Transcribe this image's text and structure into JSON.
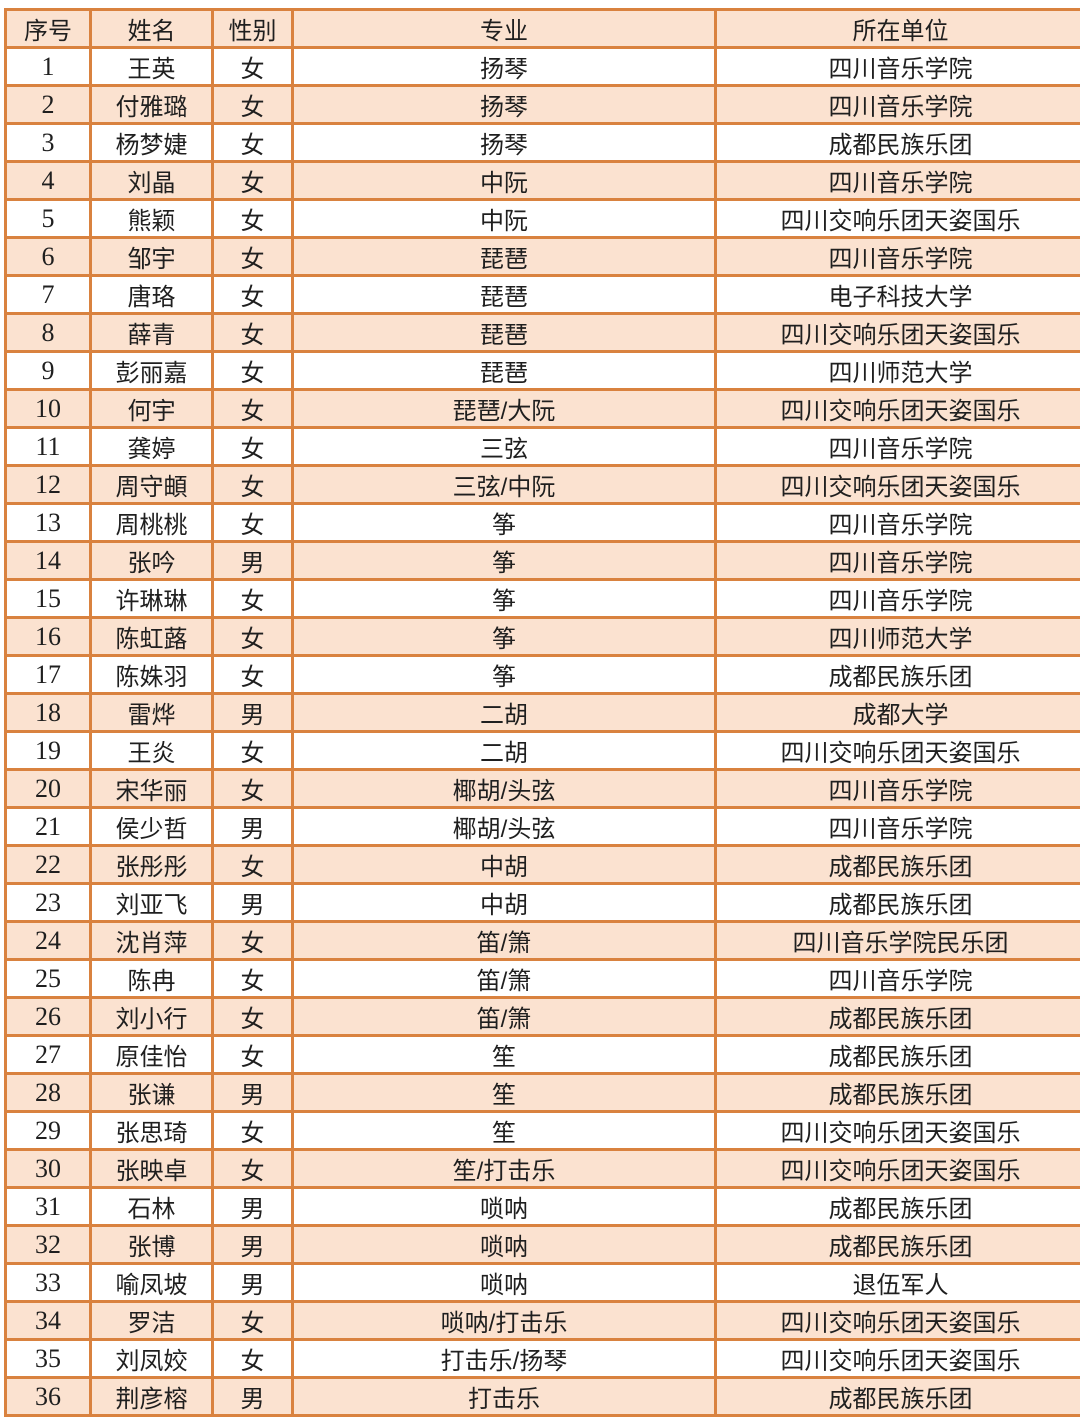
{
  "colors": {
    "border": "#d9823f",
    "header_bg": "#fbe2d0",
    "alt_row_bg": "#fbe2d0",
    "row_bg": "#ffffff",
    "text": "#1f1f1f"
  },
  "table": {
    "columns": [
      "序号",
      "姓名",
      "性别",
      "专业",
      "所在单位"
    ],
    "rows": [
      [
        "1",
        "王英",
        "女",
        "扬琴",
        "四川音乐学院"
      ],
      [
        "2",
        "付雅璐",
        "女",
        "扬琴",
        "四川音乐学院"
      ],
      [
        "3",
        "杨梦婕",
        "女",
        "扬琴",
        "成都民族乐团"
      ],
      [
        "4",
        "刘晶",
        "女",
        "中阮",
        "四川音乐学院"
      ],
      [
        "5",
        "熊颖",
        "女",
        "中阮",
        "四川交响乐团天姿国乐"
      ],
      [
        "6",
        "邹宇",
        "女",
        "琵琶",
        "四川音乐学院"
      ],
      [
        "7",
        "唐珞",
        "女",
        "琵琶",
        "电子科技大学"
      ],
      [
        "8",
        "薛青",
        "女",
        "琵琶",
        "四川交响乐团天姿国乐"
      ],
      [
        "9",
        "彭丽嘉",
        "女",
        "琵琶",
        "四川师范大学"
      ],
      [
        "10",
        "何宇",
        "女",
        "琵琶/大阮",
        "四川交响乐团天姿国乐"
      ],
      [
        "11",
        "龚婷",
        "女",
        "三弦",
        "四川音乐学院"
      ],
      [
        "12",
        "周守頔",
        "女",
        "三弦/中阮",
        "四川交响乐团天姿国乐"
      ],
      [
        "13",
        "周桃桃",
        "女",
        "筝",
        "四川音乐学院"
      ],
      [
        "14",
        "张吟",
        "男",
        "筝",
        "四川音乐学院"
      ],
      [
        "15",
        "许琳琳",
        "女",
        "筝",
        "四川音乐学院"
      ],
      [
        "16",
        "陈虹蕗",
        "女",
        "筝",
        "四川师范大学"
      ],
      [
        "17",
        "陈姝羽",
        "女",
        "筝",
        "成都民族乐团"
      ],
      [
        "18",
        "雷烨",
        "男",
        "二胡",
        "成都大学"
      ],
      [
        "19",
        "王炎",
        "女",
        "二胡",
        "四川交响乐团天姿国乐"
      ],
      [
        "20",
        "宋华丽",
        "女",
        "椰胡/头弦",
        "四川音乐学院"
      ],
      [
        "21",
        "侯少哲",
        "男",
        "椰胡/头弦",
        "四川音乐学院"
      ],
      [
        "22",
        "张彤彤",
        "女",
        "中胡",
        "成都民族乐团"
      ],
      [
        "23",
        "刘亚飞",
        "男",
        "中胡",
        "成都民族乐团"
      ],
      [
        "24",
        "沈肖萍",
        "女",
        "笛/箫",
        "四川音乐学院民乐团"
      ],
      [
        "25",
        "陈冉",
        "女",
        "笛/箫",
        "四川音乐学院"
      ],
      [
        "26",
        "刘小行",
        "女",
        "笛/箫",
        "成都民族乐团"
      ],
      [
        "27",
        "原佳怡",
        "女",
        "笙",
        "成都民族乐团"
      ],
      [
        "28",
        "张谦",
        "男",
        "笙",
        "成都民族乐团"
      ],
      [
        "29",
        "张思琦",
        "女",
        "笙",
        "四川交响乐团天姿国乐"
      ],
      [
        "30",
        "张映卓",
        "女",
        "笙/打击乐",
        "四川交响乐团天姿国乐"
      ],
      [
        "31",
        "石林",
        "男",
        "唢呐",
        "成都民族乐团"
      ],
      [
        "32",
        "张博",
        "男",
        "唢呐",
        "成都民族乐团"
      ],
      [
        "33",
        "喻凤坡",
        "男",
        "唢呐",
        "退伍军人"
      ],
      [
        "34",
        "罗洁",
        "女",
        "唢呐/打击乐",
        "四川交响乐团天姿国乐"
      ],
      [
        "35",
        "刘凤姣",
        "女",
        "打击乐/扬琴",
        "四川交响乐团天姿国乐"
      ],
      [
        "36",
        "荆彦榕",
        "男",
        "打击乐",
        "成都民族乐团"
      ]
    ]
  }
}
